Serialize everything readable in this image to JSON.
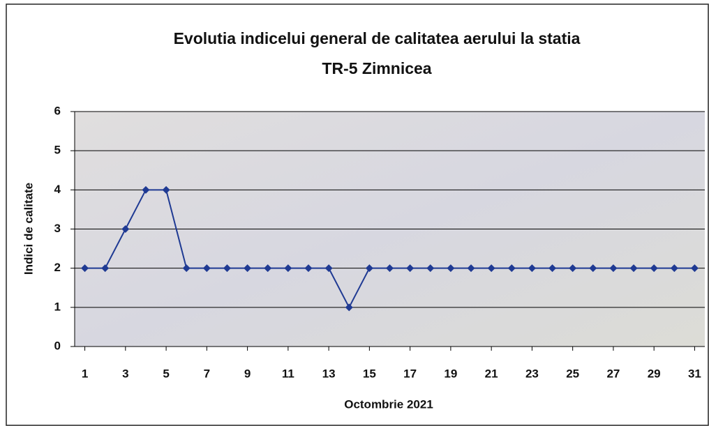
{
  "chart_data": {
    "type": "line",
    "title": "Evolutia indicelui general de calitatea aerului la statia",
    "subtitle": "TR-5 Zimnicea",
    "xlabel": "Octombrie 2021",
    "ylabel": "Indici de calitate",
    "x": [
      1,
      2,
      3,
      4,
      5,
      6,
      7,
      8,
      9,
      10,
      11,
      12,
      13,
      14,
      15,
      16,
      17,
      18,
      19,
      20,
      21,
      22,
      23,
      24,
      25,
      26,
      27,
      28,
      29,
      30,
      31
    ],
    "series": [
      {
        "name": "TR-5 Zimnicea",
        "color": "#1f3a93",
        "values": [
          2,
          2,
          3,
          4,
          4,
          2,
          2,
          2,
          2,
          2,
          2,
          2,
          2,
          1,
          2,
          2,
          2,
          2,
          2,
          2,
          2,
          2,
          2,
          2,
          2,
          2,
          2,
          2,
          2,
          2,
          2
        ]
      }
    ],
    "xlim": [
      0.5,
      31.5
    ],
    "xticks": [
      1,
      3,
      5,
      7,
      9,
      11,
      13,
      15,
      17,
      19,
      21,
      23,
      25,
      27,
      29,
      31
    ],
    "ylim": [
      0,
      6
    ],
    "yticks": [
      0,
      1,
      2,
      3,
      4,
      5,
      6
    ],
    "grid": true
  }
}
